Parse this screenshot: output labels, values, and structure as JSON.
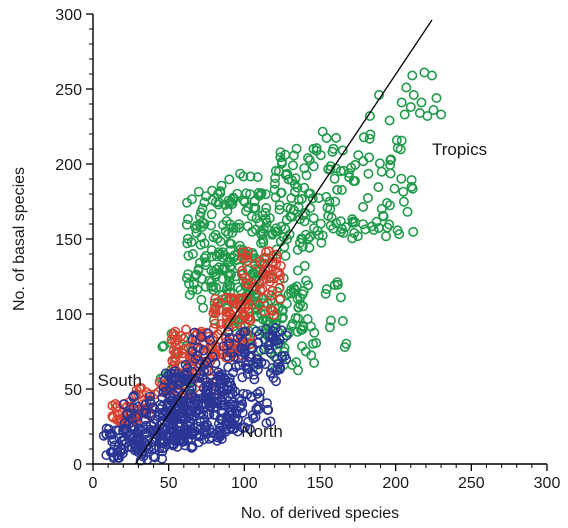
{
  "chart_data": {
    "type": "scatter",
    "title": "",
    "xlabel": "No. of derived species",
    "ylabel": "No. of basal species",
    "xlim": [
      0,
      300
    ],
    "ylim": [
      0,
      300
    ],
    "x_ticks": [
      0,
      50,
      100,
      150,
      200,
      250,
      300
    ],
    "y_ticks": [
      0,
      50,
      100,
      150,
      200,
      250,
      300
    ],
    "x_tick_labels": [
      "0",
      "50",
      "100",
      "150",
      "200",
      "250",
      "300"
    ],
    "y_tick_labels": [
      "0",
      "50",
      "100",
      "150",
      "200",
      "250",
      "300"
    ],
    "grid": false,
    "legend": "none",
    "colors": {
      "Tropics": "#1f9a4a",
      "South": "#d9402f",
      "North": "#2b3595",
      "line": "#000000"
    },
    "annotations": [
      {
        "text": "Tropics",
        "x": 224,
        "y": 206
      },
      {
        "text": "South",
        "x": 3,
        "y": 52
      },
      {
        "text": "North",
        "x": 98,
        "y": 18
      }
    ],
    "regression_line": {
      "points": [
        [
          28,
          0
        ],
        [
          224,
          296
        ]
      ]
    },
    "series": [
      {
        "label": "Tropics",
        "clusters": [
          {
            "x": [
              44,
              66
            ],
            "y": [
              48,
              90
            ],
            "n": 20,
            "seed": 11
          },
          {
            "x": [
              62,
              115
            ],
            "y": [
              104,
              182
            ],
            "n": 170,
            "seed": 12
          },
          {
            "x": [
              78,
              140
            ],
            "y": [
              88,
              196
            ],
            "n": 130,
            "seed": 13
          },
          {
            "x": [
              95,
              150
            ],
            "y": [
              62,
              128
            ],
            "n": 60,
            "seed": 14
          },
          {
            "x": [
              108,
              168
            ],
            "y": [
              72,
              122
            ],
            "n": 30,
            "seed": 15
          },
          {
            "x": [
              118,
              160
            ],
            "y": [
              142,
              212
            ],
            "n": 60,
            "seed": 16
          },
          {
            "x": [
              150,
              212
            ],
            "y": [
              150,
              222
            ],
            "n": 80,
            "seed": 17
          },
          {
            "x": [
              186,
              206
            ],
            "y": [
              150,
              172
            ],
            "n": 3,
            "seed": 18
          }
        ],
        "extra_points": [
          [
            211,
            259
          ],
          [
            219,
            261
          ],
          [
            224,
            259
          ],
          [
            207,
            251
          ],
          [
            212,
            246
          ],
          [
            217,
            241
          ],
          [
            210,
            238
          ],
          [
            216,
            234
          ],
          [
            221,
            232
          ],
          [
            225,
            236
          ],
          [
            206,
            233
          ],
          [
            230,
            233
          ],
          [
            204,
            241
          ],
          [
            227,
            244
          ],
          [
            183,
            232
          ],
          [
            189,
            246
          ],
          [
            196,
            229
          ]
        ]
      },
      {
        "label": "South",
        "clusters": [
          {
            "x": [
              12,
              34
            ],
            "y": [
              26,
              42
            ],
            "n": 40,
            "seed": 21
          },
          {
            "x": [
              28,
              55
            ],
            "y": [
              30,
              55
            ],
            "n": 30,
            "seed": 22
          },
          {
            "x": [
              52,
              82
            ],
            "y": [
              42,
              90
            ],
            "n": 90,
            "seed": 23
          },
          {
            "x": [
              78,
              105
            ],
            "y": [
              70,
              112
            ],
            "n": 80,
            "seed": 24
          },
          {
            "x": [
              98,
              125
            ],
            "y": [
              95,
              142
            ],
            "n": 60,
            "seed": 25
          }
        ],
        "extra_points": []
      },
      {
        "label": "North",
        "clusters": [
          {
            "x": [
              7,
              48
            ],
            "y": [
              2,
              24
            ],
            "n": 80,
            "seed": 31
          },
          {
            "x": [
              20,
              68
            ],
            "y": [
              10,
              46
            ],
            "n": 120,
            "seed": 32
          },
          {
            "x": [
              45,
              96
            ],
            "y": [
              14,
              62
            ],
            "n": 210,
            "seed": 33
          },
          {
            "x": [
              60,
              118
            ],
            "y": [
              20,
              88
            ],
            "n": 130,
            "seed": 34
          },
          {
            "x": [
              95,
              128
            ],
            "y": [
              55,
              92
            ],
            "n": 40,
            "seed": 35
          }
        ],
        "extra_points": []
      }
    ]
  }
}
